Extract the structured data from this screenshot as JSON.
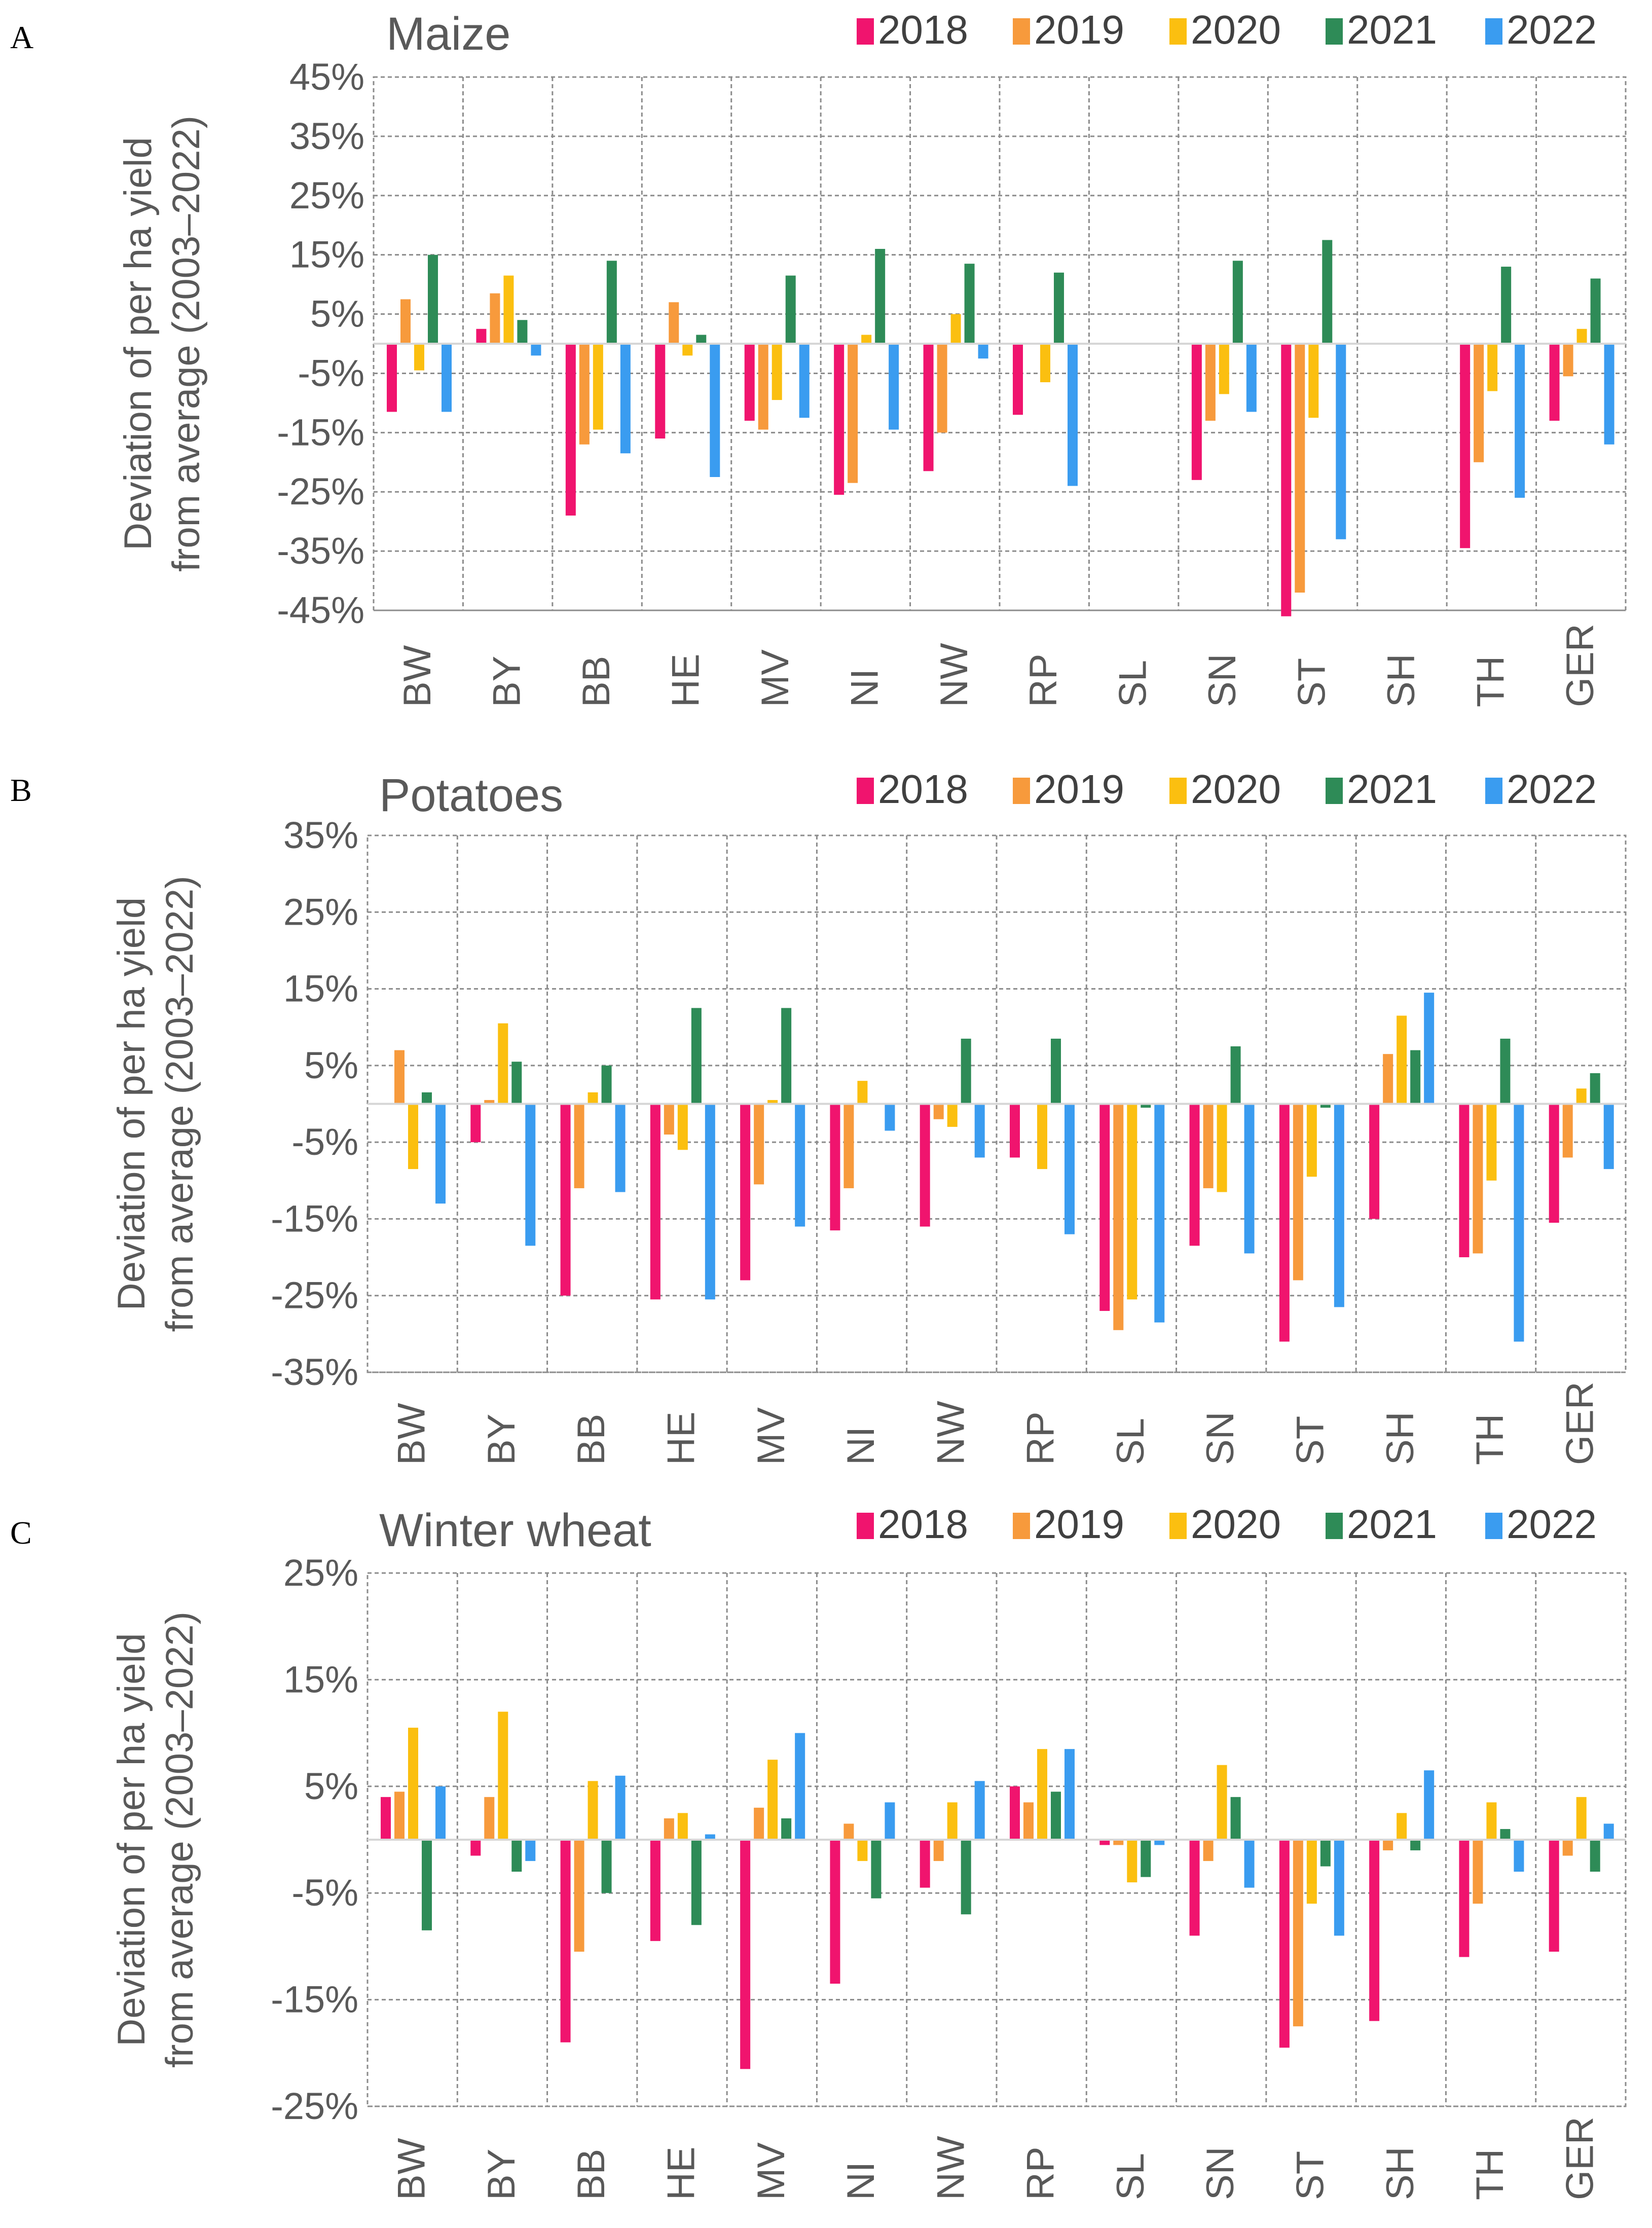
{
  "series_names": [
    "2018",
    "2019",
    "2020",
    "2021",
    "2022"
  ],
  "series_colors": [
    "#f0146e",
    "#f79a3c",
    "#fbbf10",
    "#2e8b57",
    "#3a9cf0"
  ],
  "chart_data": [
    {
      "panel": "A",
      "type": "bar",
      "title": "Maize",
      "ylabel": [
        "Deviation of per ha yield",
        "from average (2003–2022)"
      ],
      "ylim": [
        -45,
        45
      ],
      "yticks": [
        "45%",
        "35%",
        "25%",
        "15%",
        "5%",
        "-5%",
        "-15%",
        "-25%",
        "-35%",
        "-45%"
      ],
      "ytick_values": [
        45,
        35,
        25,
        15,
        5,
        -5,
        -15,
        -25,
        -35,
        -45
      ],
      "categories": [
        "BW",
        "BY",
        "BB",
        "HE",
        "MV",
        "NI",
        "NW",
        "RP",
        "SL",
        "SN",
        "ST",
        "SH",
        "TH",
        "GER"
      ],
      "series": [
        {
          "name": "2018",
          "values": [
            -11.5,
            2.5,
            -29,
            -16,
            -13,
            -25.5,
            -21.5,
            -12,
            0,
            -23,
            -46,
            0,
            -34.5,
            -13
          ]
        },
        {
          "name": "2019",
          "values": [
            7.5,
            8.5,
            -17,
            7,
            -14.5,
            -23.5,
            -15,
            0,
            0,
            -13,
            -42,
            0,
            -20,
            -5.5
          ]
        },
        {
          "name": "2020",
          "values": [
            -4.5,
            11.5,
            -14.5,
            -2,
            -9.5,
            1.5,
            5,
            -6.5,
            0,
            -8.5,
            -12.5,
            0,
            -8,
            2.5
          ]
        },
        {
          "name": "2021",
          "values": [
            15,
            4,
            14,
            1.5,
            11.5,
            16,
            13.5,
            12,
            0,
            14,
            17.5,
            0,
            13,
            11
          ]
        },
        {
          "name": "2022",
          "values": [
            -11.5,
            -2,
            -18.5,
            -22.5,
            -12.5,
            -14.5,
            -2.5,
            -24,
            0,
            -11.5,
            -33,
            0,
            -26,
            -17
          ]
        }
      ]
    },
    {
      "panel": "B",
      "type": "bar",
      "title": "Potatoes",
      "ylabel": [
        "Deviation of per ha yield",
        "from average (2003–2022)"
      ],
      "ylim": [
        -35,
        35
      ],
      "yticks": [
        "35%",
        "25%",
        "15%",
        "5%",
        "-5%",
        "-15%",
        "-25%",
        "-35%"
      ],
      "ytick_values": [
        35,
        25,
        15,
        5,
        -5,
        -15,
        -25,
        -35
      ],
      "categories": [
        "BW",
        "BY",
        "BB",
        "HE",
        "MV",
        "NI",
        "NW",
        "RP",
        "SL",
        "SN",
        "ST",
        "SH",
        "TH",
        "GER"
      ],
      "series": [
        {
          "name": "2018",
          "values": [
            0,
            -5,
            -25,
            -25.5,
            -23,
            -16.5,
            -16,
            -7,
            -27,
            -18.5,
            -31,
            -15,
            -20,
            -15.5
          ]
        },
        {
          "name": "2019",
          "values": [
            7,
            0.5,
            -11,
            -4,
            -10.5,
            -11,
            -2,
            0,
            -29.5,
            -11,
            -23,
            6.5,
            -19.5,
            -7
          ]
        },
        {
          "name": "2020",
          "values": [
            -8.5,
            10.5,
            1.5,
            -6,
            0.5,
            3,
            -3,
            -8.5,
            -25.5,
            -11.5,
            -9.5,
            11.5,
            -10,
            2
          ]
        },
        {
          "name": "2021",
          "values": [
            1.5,
            5.5,
            5,
            12.5,
            12.5,
            0,
            8.5,
            8.5,
            -0.5,
            7.5,
            -0.5,
            7,
            8.5,
            4
          ]
        },
        {
          "name": "2022",
          "values": [
            -13,
            -18.5,
            -11.5,
            -25.5,
            -16,
            -3.5,
            -7,
            -17,
            -28.5,
            -19.5,
            -26.5,
            14.5,
            -31,
            -8.5
          ]
        }
      ]
    },
    {
      "panel": "C",
      "type": "bar",
      "title": "Winter wheat",
      "ylabel": [
        "Deviation of per ha yield",
        "from average (2003–2022)"
      ],
      "ylim": [
        -25,
        25
      ],
      "yticks": [
        "25%",
        "15%",
        "5%",
        "-5%",
        "-15%",
        "-25%"
      ],
      "ytick_values": [
        25,
        15,
        5,
        -5,
        -15,
        -25
      ],
      "categories": [
        "BW",
        "BY",
        "BB",
        "HE",
        "MV",
        "NI",
        "NW",
        "RP",
        "SL",
        "SN",
        "ST",
        "SH",
        "TH",
        "GER"
      ],
      "series": [
        {
          "name": "2018",
          "values": [
            4,
            -1.5,
            -19,
            -9.5,
            -21.5,
            -13.5,
            -4.5,
            5,
            -0.5,
            -9,
            -19.5,
            -17,
            -11,
            -10.5
          ]
        },
        {
          "name": "2019",
          "values": [
            4.5,
            4,
            -10.5,
            2,
            3,
            1.5,
            -2,
            3.5,
            -0.5,
            -2,
            -17.5,
            -1,
            -6,
            -1.5
          ]
        },
        {
          "name": "2020",
          "values": [
            10.5,
            12,
            5.5,
            2.5,
            7.5,
            -2,
            3.5,
            8.5,
            -4,
            7,
            -6,
            2.5,
            3.5,
            4
          ]
        },
        {
          "name": "2021",
          "values": [
            -8.5,
            -3,
            -5,
            -8,
            2,
            -5.5,
            -7,
            4.5,
            -3.5,
            4,
            -2.5,
            -1,
            1,
            -3
          ]
        },
        {
          "name": "2022",
          "values": [
            5,
            -2,
            6,
            0.5,
            10,
            3.5,
            5.5,
            8.5,
            -0.5,
            -4.5,
            -9,
            6.5,
            -3,
            1.5
          ]
        }
      ]
    }
  ]
}
